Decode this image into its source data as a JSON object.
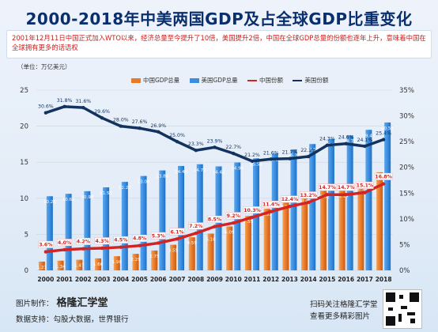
{
  "header": {
    "title": "2000-2018年中美两国GDP及占全球GDP比重变化",
    "note": "2001年12月11日中国正式加入WTO以来，经济总量至今提升了10倍，美国提升2倍，中国在全球GDP总量的份额也逐年上升，意味着中国在全球拥有更多的话语权"
  },
  "footer": {
    "credit_label": "图片制作：",
    "credit_brand": "格隆汇学堂",
    "data_support": "数据支持：勾股大数据，世界银行",
    "qr_line1": "扫码关注格隆汇学堂",
    "qr_line2": "查看更多精彩图片"
  },
  "colors": {
    "china_bar": "#e97a2a",
    "us_bar": "#3a8ee0",
    "china_share_line": "#d42323",
    "us_share_line": "#12335f"
  },
  "chart_data": {
    "type": "bar",
    "unit_label": "（单位：万亿美元）",
    "categories": [
      "2000",
      "2001",
      "2002",
      "2003",
      "2004",
      "2005",
      "2006",
      "2007",
      "2008",
      "2009",
      "2010",
      "2011",
      "2012",
      "2013",
      "2014",
      "2015",
      "2016",
      "2017",
      "2018"
    ],
    "y_left": {
      "min": 0,
      "max": 25,
      "ticks": [
        0,
        5,
        10,
        15,
        20,
        25
      ]
    },
    "y_right": {
      "min": 0,
      "max": 35,
      "ticks": [
        "0%",
        "5%",
        "10%",
        "15%",
        "20%",
        "25%",
        "30%",
        "35%"
      ]
    },
    "legend": [
      "中国GDP总量",
      "美国GDP总量",
      "中国份额",
      "美国份额"
    ],
    "series": [
      {
        "name": "中国GDP总量",
        "axis": "left",
        "kind": "bar",
        "values": [
          1.21,
          1.34,
          1.47,
          1.66,
          1.96,
          2.29,
          2.75,
          3.55,
          4.59,
          5.1,
          6.09,
          7.55,
          8.53,
          9.57,
          10.44,
          11.02,
          11.14,
          12.14,
          13.61
        ],
        "labels": [
          "1.21",
          "1.34",
          "1.47",
          "1.66",
          "1.96",
          "2.29",
          "2.75",
          "3.55",
          "4.59",
          "5.10",
          "6.09",
          "7.55",
          "8.53",
          "9.57",
          "10.44",
          "11.02",
          "11.14",
          "12.14",
          "13.61"
        ]
      },
      {
        "name": "美国GDP总量",
        "axis": "left",
        "kind": "bar",
        "values": [
          10.28,
          10.62,
          10.98,
          11.51,
          12.27,
          13.09,
          13.86,
          14.48,
          14.72,
          14.42,
          14.96,
          15.54,
          16.2,
          16.78,
          17.52,
          18.22,
          18.71,
          19.49,
          20.51
        ],
        "labels": [
          "10.28",
          "10.62",
          "10.98",
          "11.51",
          "12.27",
          "13.09",
          "13.86",
          "14.48",
          "14.72",
          "14.42",
          "14.96",
          "15.54",
          "16.20",
          "16.78",
          "17.52",
          "18.22",
          "18.71",
          "19.49",
          "20.51"
        ]
      },
      {
        "name": "中国份额",
        "axis": "right",
        "kind": "line",
        "values": [
          3.6,
          4.0,
          4.2,
          4.3,
          4.5,
          4.8,
          5.3,
          6.1,
          7.2,
          8.5,
          9.2,
          10.3,
          11.4,
          12.4,
          13.2,
          14.7,
          14.7,
          15.1,
          16.8
        ],
        "labels": [
          "3.6%",
          "4.0%",
          "4.2%",
          "4.3%",
          "4.5%",
          "4.8%",
          "5.3%",
          "6.1%",
          "7.2%",
          "8.5%",
          "9.2%",
          "10.3%",
          "11.4%",
          "12.4%",
          "13.2%",
          "14.7%",
          "14.7%",
          "15.1%",
          "16.8%"
        ]
      },
      {
        "name": "美国份额",
        "axis": "right",
        "kind": "line",
        "values": [
          30.6,
          31.8,
          31.6,
          29.6,
          28.0,
          27.6,
          26.9,
          25.0,
          23.3,
          23.9,
          22.7,
          21.2,
          21.6,
          21.7,
          22.1,
          24.3,
          24.6,
          24.1,
          25.4
        ],
        "labels": [
          "30.6%",
          "31.8%",
          "31.6%",
          "29.6%",
          "28.0%",
          "27.6%",
          "26.9%",
          "25.0%",
          "23.3%",
          "23.9%",
          "22.7%",
          "21.2%",
          "21.6%",
          "21.7%",
          "22.1%",
          "24.3%",
          "24.6%",
          "24.1%",
          "25.4%"
        ]
      }
    ]
  }
}
